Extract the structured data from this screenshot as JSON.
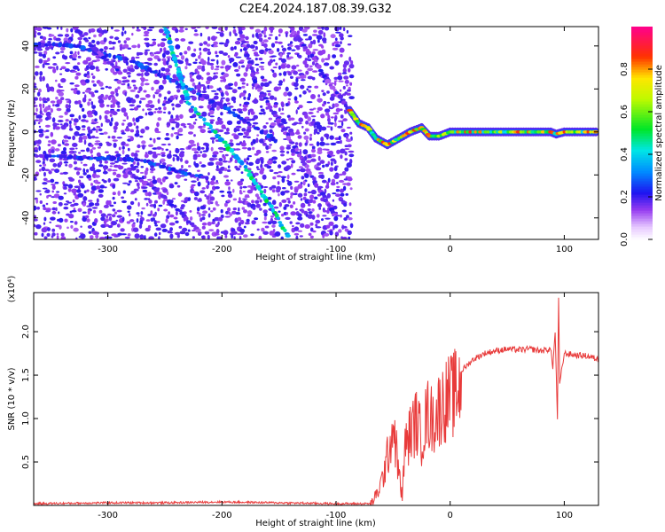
{
  "title": "C2E4.2024.187.08.39.G32",
  "chart_data": [
    {
      "type": "heatmap",
      "xlabel": "Height of straight line (km)",
      "ylabel": "Frequency (Hz)",
      "xlim": [
        -365,
        130
      ],
      "ylim": [
        -50,
        49
      ],
      "xticks": [
        -300,
        -200,
        -100,
        0,
        100
      ],
      "yticks": [
        -40,
        -20,
        0,
        20,
        40
      ],
      "colorbar": {
        "label": "Normalized spectral amplitude",
        "range": [
          0.0,
          1.0
        ],
        "ticks": [
          0.0,
          0.2,
          0.4,
          0.6,
          0.8
        ],
        "colormap": "rainbow (white-violet-blue-cyan-green-yellow-red-pink)"
      },
      "features": [
        {
          "kind": "noise",
          "x_range": [
            -365,
            -88
          ],
          "y_range": [
            -50,
            49
          ],
          "amplitude": 0.15
        },
        {
          "kind": "streak",
          "points": [
            [
              -365,
              41
            ],
            [
              -330,
              40
            ],
            [
              -280,
              33
            ],
            [
              -240,
              23
            ],
            [
              -200,
              12
            ],
            [
              -170,
              2
            ],
            [
              -150,
              -5
            ]
          ],
          "amplitude": 0.2
        },
        {
          "kind": "streak",
          "points": [
            [
              -250,
              49
            ],
            [
              -230,
              14
            ],
            [
              -210,
              2
            ],
            [
              -190,
              -10
            ],
            [
              -180,
              -16
            ],
            [
              -165,
              -28
            ],
            [
              -140,
              -50
            ]
          ],
          "amplitude": 0.35
        },
        {
          "kind": "streak",
          "points": [
            [
              -330,
              49
            ],
            [
              -310,
              38
            ],
            [
              -290,
              28
            ]
          ],
          "amplitude": 0.15
        },
        {
          "kind": "streak",
          "points": [
            [
              -185,
              49
            ],
            [
              -170,
              22
            ],
            [
              -150,
              5
            ],
            [
              -135,
              -8
            ],
            [
              -120,
              -22
            ],
            [
              -100,
              -40
            ]
          ],
          "amplitude": 0.15
        },
        {
          "kind": "streak",
          "points": [
            [
              -140,
              49
            ],
            [
              -120,
              34
            ],
            [
              -105,
              22
            ],
            [
              -88,
              10
            ]
          ],
          "amplitude": 0.15
        },
        {
          "kind": "streak",
          "points": [
            [
              -365,
              -11
            ],
            [
              -320,
              -12
            ],
            [
              -270,
              -13
            ],
            [
              -240,
              -18
            ],
            [
              -210,
              -22
            ]
          ],
          "amplitude": 0.2
        },
        {
          "kind": "streak",
          "points": [
            [
              -290,
              -16
            ],
            [
              -260,
              -26
            ],
            [
              -235,
              -38
            ],
            [
              -215,
              -50
            ]
          ],
          "amplitude": 0.15
        },
        {
          "kind": "carrier",
          "points": [
            [
              -88,
              10
            ],
            [
              -80,
              4
            ],
            [
              -72,
              2
            ],
            [
              -65,
              -3
            ],
            [
              -55,
              -6
            ],
            [
              -45,
              -3
            ],
            [
              -35,
              0
            ],
            [
              -25,
              2
            ],
            [
              -18,
              -2
            ],
            [
              -10,
              -2
            ],
            [
              0,
              0
            ],
            [
              20,
              0
            ],
            [
              60,
              0
            ],
            [
              88,
              0
            ],
            [
              93,
              -1
            ],
            [
              100,
              0
            ],
            [
              130,
              0
            ]
          ],
          "amplitude": 0.55
        }
      ]
    },
    {
      "type": "line",
      "xlabel": "Height of straight line (km)",
      "ylabel": "SNR (10 * v/v)",
      "y_multiplier": "(x10⁴)",
      "xlim": [
        -365,
        130
      ],
      "ylim": [
        0.0,
        2.45
      ],
      "xticks": [
        -300,
        -200,
        -100,
        0,
        100
      ],
      "yticks": [
        0.5,
        1.0,
        1.5,
        2.0
      ],
      "color": "#e83a3a",
      "x": [
        -365,
        -300,
        -250,
        -200,
        -150,
        -100,
        -70,
        -65,
        -60,
        -55,
        -50,
        -48,
        -45,
        -42,
        -40,
        -35,
        -30,
        -25,
        -20,
        -15,
        -10,
        -5,
        0,
        5,
        10,
        20,
        30,
        40,
        50,
        60,
        70,
        80,
        88,
        90,
        92,
        94,
        95,
        96,
        100,
        110,
        120,
        130
      ],
      "y": [
        0.02,
        0.03,
        0.03,
        0.04,
        0.03,
        0.02,
        0.02,
        0.12,
        0.3,
        0.6,
        1.0,
        0.8,
        0.4,
        0.1,
        0.7,
        0.9,
        1.05,
        0.85,
        1.15,
        1.05,
        1.2,
        1.3,
        1.35,
        1.4,
        1.55,
        1.68,
        1.75,
        1.78,
        1.8,
        1.79,
        1.8,
        1.78,
        1.8,
        1.6,
        2.0,
        1.0,
        2.4,
        1.4,
        1.75,
        1.73,
        1.72,
        1.68
      ]
    }
  ]
}
